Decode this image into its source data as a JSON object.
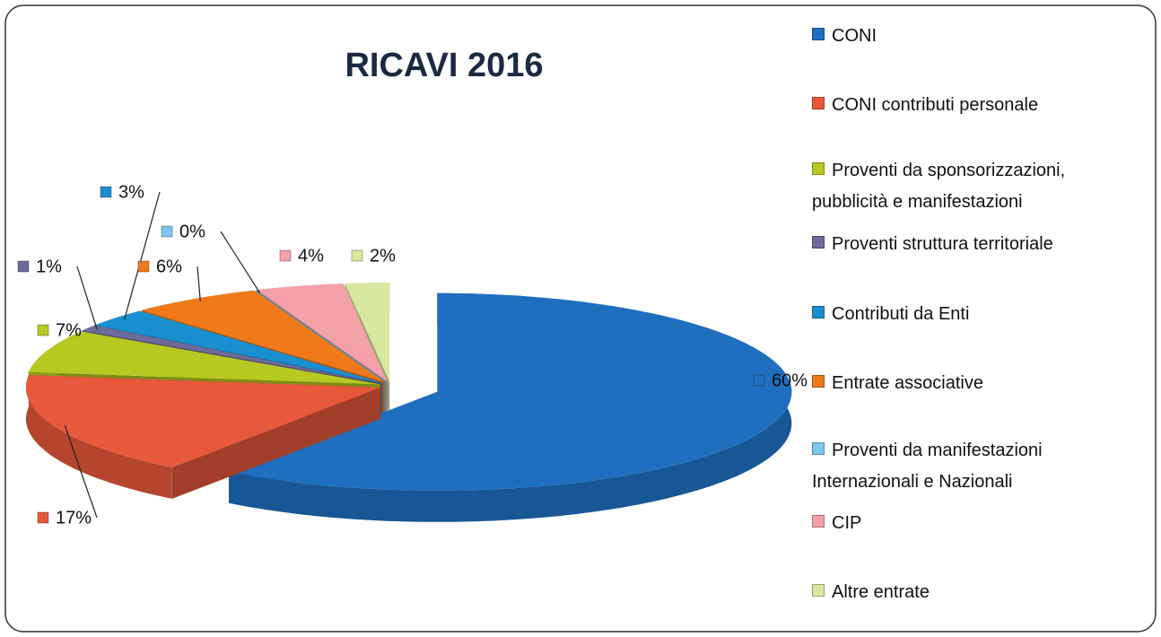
{
  "chart_data": {
    "type": "pie3d",
    "title": "RICAVI 2016",
    "categories": [
      "CONI",
      "CONI contributi personale",
      "Proventi da sponsorizzazioni, pubblicità e manifestazioni",
      "Proventi struttura territoriale",
      "Contributi da Enti",
      "Entrate associative",
      "Proventi da manifestazioni Internazionali e Nazionali",
      "CIP",
      "Altre entrate"
    ],
    "values": [
      60,
      17,
      7,
      1,
      3,
      6,
      0,
      4,
      2
    ],
    "value_labels": [
      "60%",
      "17%",
      "7%",
      "1%",
      "3%",
      "6%",
      "0%",
      "4%",
      "2%"
    ],
    "colors": [
      "#1f6fc0",
      "#e8583a",
      "#b7c820",
      "#6e6a9a",
      "#1a8fd0",
      "#f07a1a",
      "#7ec8f0",
      "#f4a0a8",
      "#d8e8a0"
    ],
    "legend": "right"
  }
}
